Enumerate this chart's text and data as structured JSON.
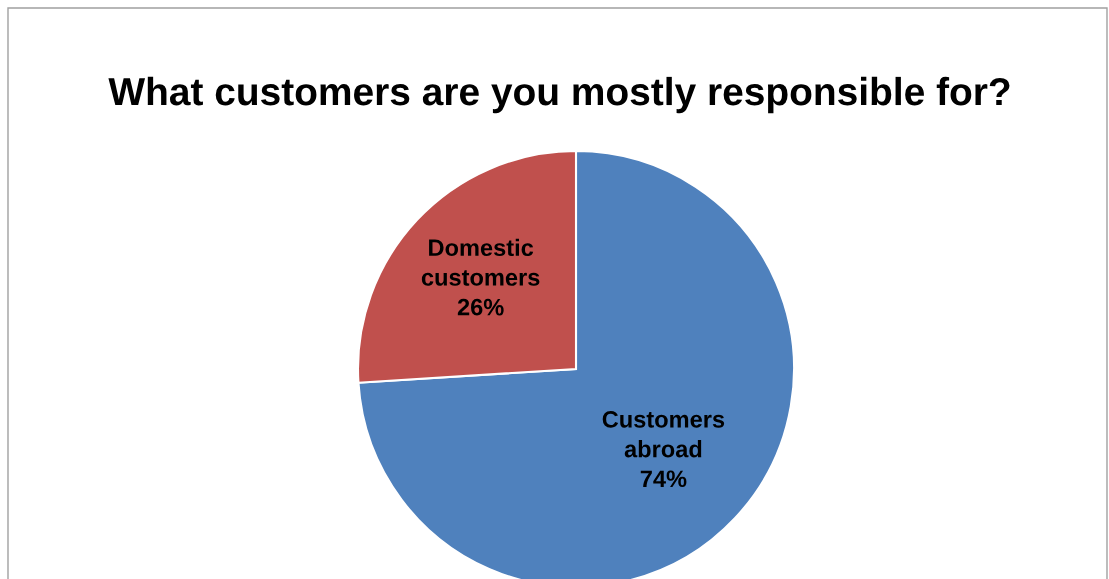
{
  "chart_data": {
    "type": "pie",
    "title": "What customers are you mostly responsible for?",
    "categories": [
      "Customers abroad",
      "Domestic customers"
    ],
    "values": [
      74,
      26
    ],
    "value_labels": [
      "74%",
      "26%"
    ],
    "colors": [
      "#4f81bd",
      "#c0504d"
    ],
    "legend": false
  }
}
